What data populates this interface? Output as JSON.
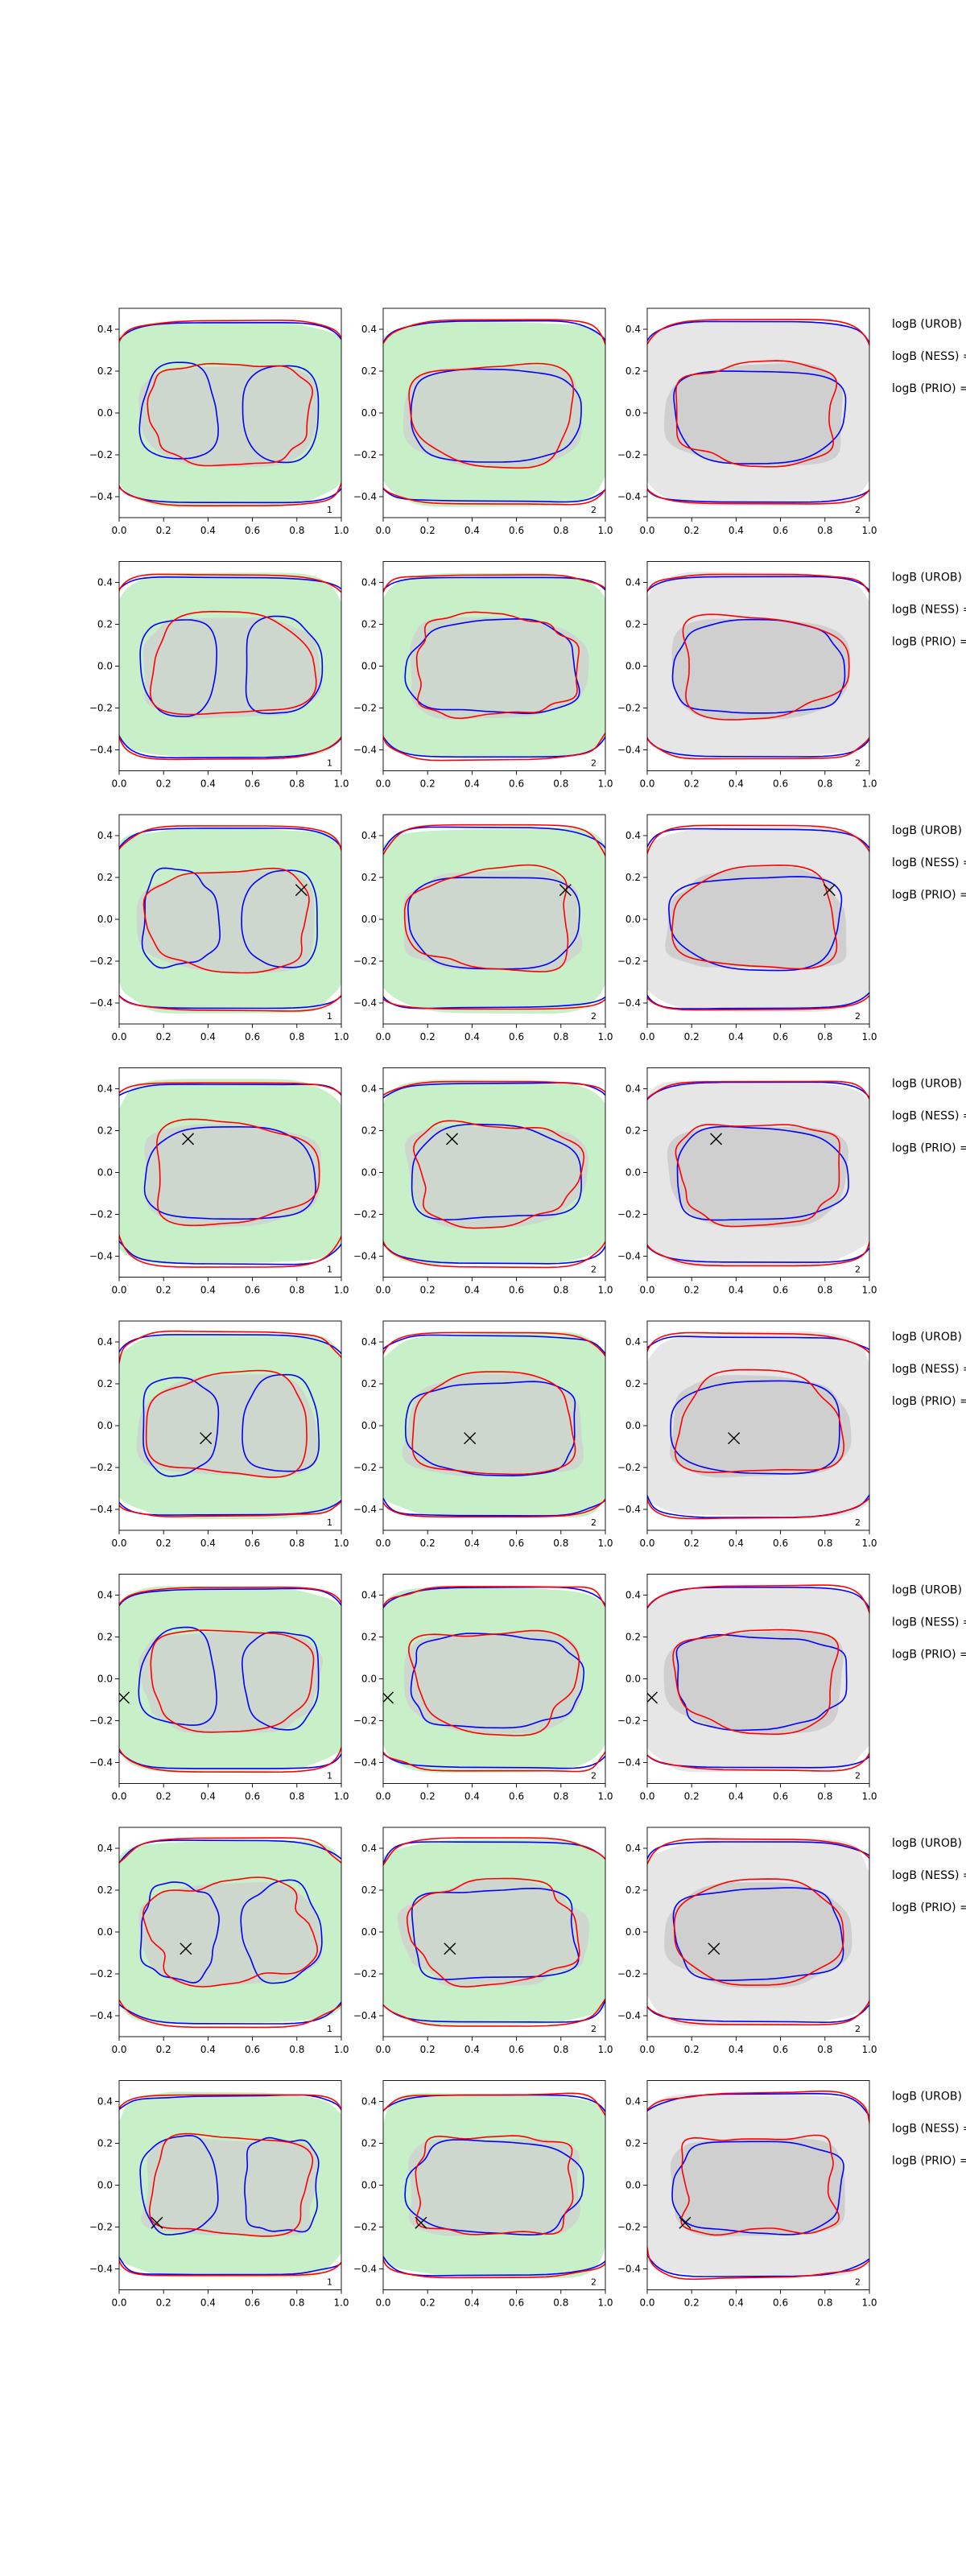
{
  "chart_data": {
    "type": "contour",
    "layout": "8 rows x 3 columns grid of contour panels",
    "xlim": [
      0.0,
      1.0
    ],
    "ylim": [
      -0.5,
      0.5
    ],
    "xticks": [
      0.0,
      0.2,
      0.4,
      0.6,
      0.8,
      1.0
    ],
    "xtick_labels": [
      "0.0",
      "0.2",
      "0.4",
      "0.6",
      "0.8",
      "1.0"
    ],
    "yticks": [
      0.4,
      0.2,
      0.0,
      -0.2,
      -0.4
    ],
    "ytick_labels": [
      "0.4",
      "0.2",
      "0.0",
      "−0.2",
      "−0.4"
    ],
    "colors": {
      "blue": "#0000ff",
      "red": "#ff0000",
      "green_fill": "#c8f0c8",
      "grey_fill": "#cfcfcf",
      "grey_bg": "#e6e6e6",
      "marker": "#000000"
    },
    "columns": [
      {
        "panel_label": "1",
        "background": "green"
      },
      {
        "panel_label": "2",
        "background": "green"
      },
      {
        "panel_label": "2",
        "background": "grey"
      }
    ],
    "side_labels": [
      "logB (UROB) =",
      "logB (NESS) =",
      "logB (PRIO) ="
    ],
    "rows": [
      {
        "marker": null,
        "bimodal_left": true
      },
      {
        "marker": null,
        "bimodal_left": true
      },
      {
        "marker": [
          0.82,
          0.14
        ],
        "bimodal_left": true
      },
      {
        "marker": [
          0.31,
          0.16
        ],
        "bimodal_left": false
      },
      {
        "marker": [
          0.39,
          -0.06
        ],
        "bimodal_left": true
      },
      {
        "marker": [
          0.02,
          -0.09
        ],
        "bimodal_left": true
      },
      {
        "marker": [
          0.3,
          -0.08
        ],
        "bimodal_left": true
      },
      {
        "marker": [
          0.17,
          -0.18
        ],
        "bimodal_left": true
      }
    ]
  }
}
